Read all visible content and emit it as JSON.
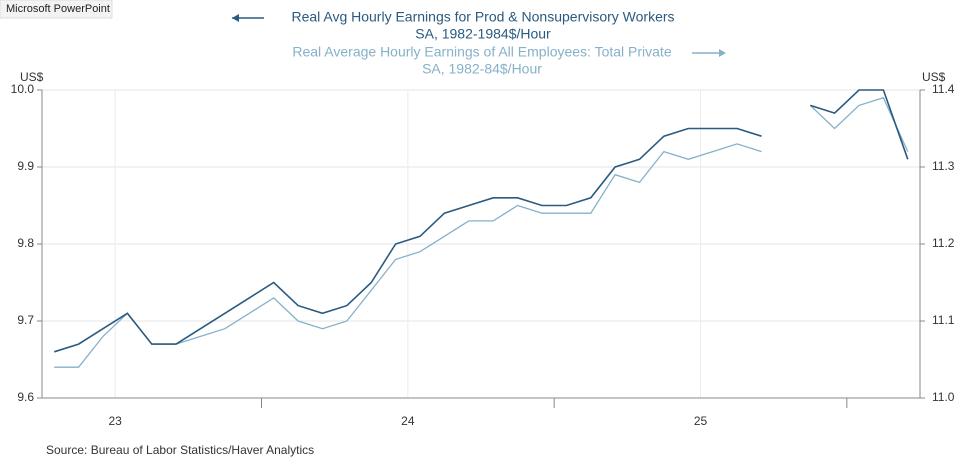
{
  "app_label": "Microsoft PowerPoint",
  "chart_data": {
    "type": "line",
    "source": "Source:  Bureau of Labor Statistics/Haver Analytics",
    "ylabel": "US$",
    "y2label": "US$",
    "x": [
      23.2917,
      23.375,
      23.4583,
      23.5417,
      23.625,
      23.7083,
      23.7917,
      23.875,
      23.9583,
      24.0417,
      24.125,
      24.2083,
      24.2917,
      24.375,
      24.4583,
      24.5417,
      24.625,
      24.7083,
      24.7917,
      24.875,
      24.9583,
      25.0417,
      25.125,
      25.2083,
      25.2917,
      25.375,
      25.4583,
      25.5417,
      25.625,
      25.7083,
      25.7917,
      25.875,
      25.9583,
      26.0417,
      26.125,
      26.2083
    ],
    "xlim": [
      23.25,
      26.25
    ],
    "xticks": [
      {
        "value": 23.5,
        "label": "23"
      },
      {
        "value": 24.5,
        "label": "24"
      },
      {
        "value": 25.5,
        "label": "25"
      }
    ],
    "ylim": [
      9.6,
      10
    ],
    "yticks": [
      9.6,
      9.7,
      9.8,
      9.9,
      {
        "value": 10,
        "label": "10.0"
      }
    ],
    "y2lim": [
      11,
      11.4
    ],
    "y2ticks": [
      {
        "value": 11,
        "label": "11.0"
      },
      11.1,
      11.2,
      11.3,
      11.4
    ],
    "grid": true,
    "series": [
      {
        "name": "Real Avg Hourly Earnings for Prod & Nonsupervisory Workers",
        "units": "SA, 1982-1984$/Hour",
        "color": "#2b5a80",
        "axis": "y",
        "values": [
          9.66,
          9.67,
          9.69,
          9.71,
          9.67,
          9.67,
          9.69,
          9.71,
          9.73,
          9.75,
          9.72,
          9.71,
          9.72,
          9.75,
          9.8,
          9.81,
          9.84,
          9.85,
          9.86,
          9.86,
          9.85,
          9.85,
          9.86,
          9.9,
          9.91,
          9.94,
          9.95,
          9.95,
          9.95,
          9.94,
          null,
          9.98,
          9.97,
          10.0,
          10.0,
          9.91
        ]
      },
      {
        "name": "Real Average Hourly Earnings of All Employees: Total Private",
        "units": "SA, 1982-84$/Hour",
        "color": "#86b1c9",
        "axis": "y2",
        "values": [
          11.04,
          11.04,
          11.08,
          11.11,
          11.07,
          11.07,
          11.08,
          11.09,
          11.11,
          11.13,
          11.1,
          11.09,
          11.1,
          11.14,
          11.18,
          11.19,
          11.21,
          11.23,
          11.23,
          11.25,
          11.24,
          11.24,
          11.24,
          11.29,
          11.28,
          11.32,
          11.31,
          11.32,
          11.33,
          11.32,
          null,
          11.38,
          11.35,
          11.38,
          11.39,
          11.32
        ]
      }
    ]
  }
}
